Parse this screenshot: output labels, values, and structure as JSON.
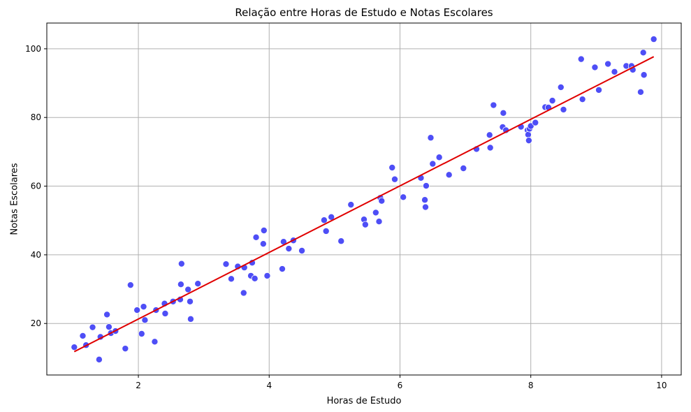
{
  "chart_data": {
    "type": "scatter",
    "title": "Relação entre Horas de Estudo e Notas Escolares",
    "xlabel": "Horas de Estudo",
    "ylabel": "Notas Escolares",
    "xlim": [
      0.6,
      10.3
    ],
    "ylim": [
      5,
      107.5
    ],
    "xticks": [
      2,
      4,
      6,
      8,
      10
    ],
    "yticks": [
      20,
      40,
      60,
      80,
      100
    ],
    "grid": true,
    "colors": {
      "points": "#4545f5",
      "line": "#e00000",
      "grid": "#b0b0b0"
    },
    "series": [
      {
        "type": "scatter",
        "x": [
          1.02,
          1.15,
          1.2,
          1.3,
          1.4,
          1.42,
          1.52,
          1.55,
          1.58,
          1.65,
          1.8,
          1.88,
          1.98,
          2.05,
          2.08,
          2.1,
          2.25,
          2.27,
          2.4,
          2.41,
          2.53,
          2.64,
          2.65,
          2.66,
          2.76,
          2.79,
          2.8,
          2.91,
          3.34,
          3.42,
          3.52,
          3.61,
          3.62,
          3.72,
          3.74,
          3.78,
          3.8,
          3.91,
          3.92,
          3.97,
          4.2,
          4.22,
          4.3,
          4.37,
          4.5,
          4.84,
          4.87,
          4.95,
          5.1,
          5.25,
          5.45,
          5.47,
          5.63,
          5.68,
          5.7,
          5.72,
          5.88,
          5.92,
          6.05,
          6.32,
          6.38,
          6.39,
          6.4,
          6.47,
          6.5,
          6.6,
          6.75,
          6.97,
          7.17,
          7.37,
          7.38,
          7.43,
          7.57,
          7.58,
          7.62,
          7.85,
          7.95,
          7.96,
          7.97,
          7.98,
          8.0,
          8.07,
          8.22,
          8.27,
          8.33,
          8.46,
          8.5,
          8.77,
          8.79,
          8.98,
          9.04,
          9.18,
          9.28,
          9.46,
          9.54,
          9.56,
          9.68,
          9.72,
          9.73,
          9.88
        ],
        "y": [
          13.1,
          16.4,
          13.7,
          18.9,
          9.5,
          16.1,
          22.6,
          19.0,
          17.2,
          17.8,
          12.7,
          31.2,
          23.9,
          17.0,
          24.9,
          21.0,
          14.7,
          23.9,
          25.8,
          22.9,
          26.4,
          27.0,
          31.4,
          37.4,
          29.9,
          26.4,
          21.3,
          31.6,
          37.3,
          33.0,
          36.6,
          28.9,
          36.3,
          33.9,
          37.7,
          33.1,
          45.1,
          43.2,
          47.1,
          33.9,
          35.9,
          43.8,
          41.8,
          44.2,
          41.2,
          50.1,
          46.9,
          51.0,
          44.0,
          54.6,
          50.3,
          48.8,
          52.3,
          49.7,
          56.6,
          55.7,
          65.4,
          62.0,
          56.8,
          62.4,
          56.0,
          53.9,
          60.1,
          74.1,
          66.5,
          68.4,
          63.3,
          65.2,
          70.8,
          74.9,
          71.2,
          83.6,
          77.2,
          81.3,
          76.3,
          77.3,
          76.3,
          75.0,
          73.3,
          76.7,
          77.5,
          78.5,
          83.0,
          82.9,
          84.9,
          88.8,
          82.3,
          97.0,
          85.3,
          94.6,
          88.0,
          95.6,
          93.3,
          95.0,
          95.0,
          93.9,
          87.4,
          98.9,
          92.4,
          102.8
        ]
      },
      {
        "type": "line",
        "x": [
          1.02,
          9.88
        ],
        "y": [
          11.8,
          97.7
        ]
      }
    ]
  }
}
